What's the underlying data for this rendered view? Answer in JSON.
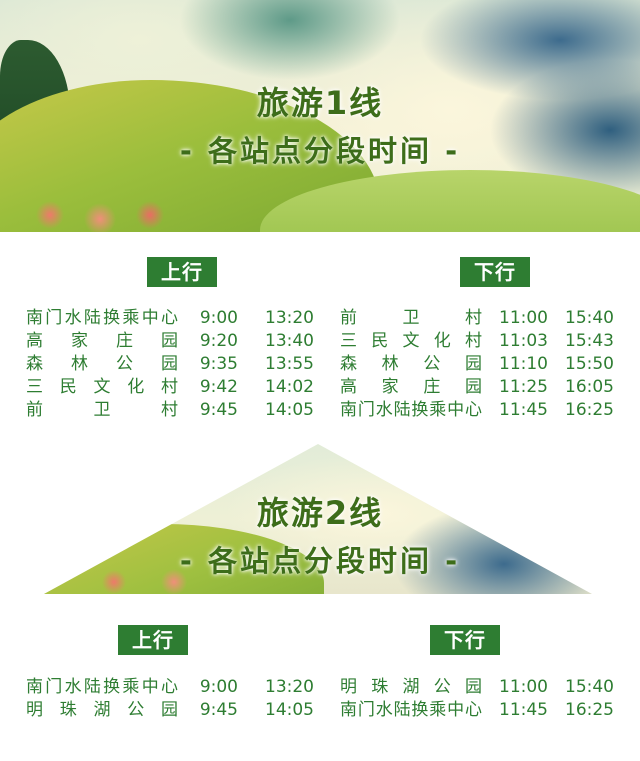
{
  "line1": {
    "title": "旅游1线",
    "subtitle": "- 各站点分段时间 -",
    "up": {
      "label": "上行",
      "rows": [
        {
          "station": "南门水陆换乘中心",
          "t1": "9:00",
          "t2": "13:20"
        },
        {
          "station": "高家庄园",
          "t1": "9:20",
          "t2": "13:40"
        },
        {
          "station": "森林公园",
          "t1": "9:35",
          "t2": "13:55"
        },
        {
          "station": "三民文化村",
          "t1": "9:42",
          "t2": "14:02"
        },
        {
          "station": "前卫村",
          "t1": "9:45",
          "t2": "14:05"
        }
      ]
    },
    "down": {
      "label": "下行",
      "rows": [
        {
          "station": "前卫村",
          "t1": "11:00",
          "t2": "15:40"
        },
        {
          "station": "三民文化村",
          "t1": "11:03",
          "t2": "15:43"
        },
        {
          "station": "森林公园",
          "t1": "11:10",
          "t2": "15:50"
        },
        {
          "station": "高家庄园",
          "t1": "11:25",
          "t2": "16:05"
        },
        {
          "station": "南门水陆换乘中心",
          "t1": "11:45",
          "t2": "16:25"
        }
      ]
    }
  },
  "line2": {
    "title": "旅游2线",
    "subtitle": "- 各站点分段时间 -",
    "up": {
      "label": "上行",
      "rows": [
        {
          "station": "南门水陆换乘中心",
          "t1": "9:00",
          "t2": "13:20"
        },
        {
          "station": "明珠湖公园",
          "t1": "9:45",
          "t2": "14:05"
        }
      ]
    },
    "down": {
      "label": "下行",
      "rows": [
        {
          "station": "明珠湖公园",
          "t1": "11:00",
          "t2": "15:40"
        },
        {
          "station": "南门水陆换乘中心",
          "t1": "11:45",
          "t2": "16:25"
        }
      ]
    }
  },
  "colors": {
    "text_green": "#2e7d32",
    "badge_green": "#2e7d32",
    "title_green": "#3d6d1a"
  }
}
